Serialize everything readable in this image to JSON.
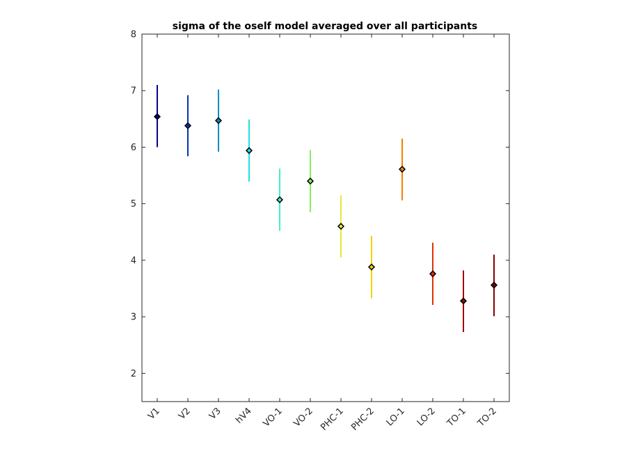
{
  "chart_data": {
    "type": "scatter",
    "title": "sigma of the oself model averaged over all participants",
    "xlabel": "",
    "ylabel": "",
    "categories": [
      "V1",
      "V2",
      "V3",
      "hV4",
      "VO-1",
      "VO-2",
      "PHC-1",
      "PHC-2",
      "LO-1",
      "LO-2",
      "TO-1",
      "TO-2"
    ],
    "values": [
      6.54,
      6.38,
      6.47,
      5.94,
      5.07,
      5.4,
      4.6,
      3.88,
      5.61,
      3.76,
      3.28,
      3.56
    ],
    "error_low": [
      6.0,
      5.84,
      5.92,
      5.39,
      4.52,
      4.85,
      4.05,
      3.33,
      5.06,
      3.21,
      2.73,
      3.01
    ],
    "error_high": [
      7.1,
      6.92,
      7.02,
      6.49,
      5.62,
      5.95,
      5.15,
      4.43,
      6.15,
      4.31,
      3.82,
      4.1
    ],
    "colors": [
      "#00008f",
      "#0033b5",
      "#008fbf",
      "#20e0e0",
      "#40f0c8",
      "#80f060",
      "#e8e830",
      "#f0d000",
      "#f08000",
      "#e03000",
      "#a00000",
      "#800000"
    ],
    "yticks": [
      2,
      3,
      4,
      5,
      6,
      7,
      8
    ],
    "ylim": [
      1.5,
      8
    ],
    "grid": false,
    "legend": "none"
  }
}
